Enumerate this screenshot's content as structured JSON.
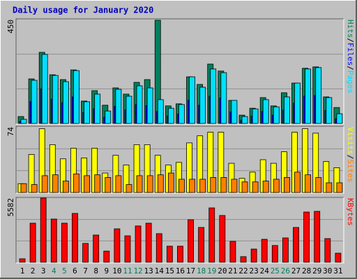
{
  "title": "Daily usage for January 2020",
  "chart_data": [
    {
      "type": "bar",
      "ylim": [
        0,
        450
      ],
      "yticks": [
        450
      ],
      "grid_values": [
        150,
        300
      ],
      "legend_separator": "/",
      "series": [
        {
          "name": "Hits",
          "color": "#00805c",
          "values": [
            30,
            193,
            308,
            211,
            190,
            232,
            97,
            142,
            79,
            154,
            127,
            178,
            190,
            447,
            76,
            85,
            202,
            169,
            257,
            227,
            100,
            36,
            66,
            112,
            76,
            133,
            175,
            239,
            245,
            115,
            69
          ]
        },
        {
          "name": "Files",
          "color": "#0000ff",
          "values": [
            9,
            95,
            150,
            105,
            90,
            115,
            47,
            64,
            27,
            74,
            59,
            82,
            77,
            52,
            33,
            41,
            101,
            79,
            118,
            110,
            50,
            15,
            32,
            52,
            36,
            58,
            88,
            118,
            121,
            56,
            21
          ]
        },
        {
          "name": "Pages",
          "color": "#00e0ff",
          "values": [
            18,
            187,
            299,
            208,
            181,
            229,
            94,
            127,
            54,
            148,
            118,
            163,
            154,
            103,
            66,
            82,
            202,
            157,
            236,
            220,
            100,
            30,
            63,
            103,
            72,
            115,
            175,
            236,
            242,
            112,
            42
          ]
        }
      ]
    },
    {
      "type": "bar",
      "ylim": [
        0,
        74
      ],
      "yticks": [
        74
      ],
      "grid_values": [
        24.67,
        49.33
      ],
      "legend_separator": "/",
      "series": [
        {
          "name": "Visits",
          "color": "#ffff00",
          "values": [
            10,
            43,
            72,
            54,
            38,
            50,
            39,
            50,
            22,
            42,
            31,
            54,
            54,
            42,
            31,
            34,
            56,
            64,
            68,
            68,
            33,
            16,
            23,
            37,
            33,
            46,
            68,
            72,
            67,
            35,
            28
          ]
        },
        {
          "name": "Sites",
          "color": "#ff8000",
          "values": [
            10,
            9,
            19,
            20,
            13,
            21,
            19,
            20,
            17,
            19,
            9,
            19,
            19,
            20,
            22,
            15,
            15,
            15,
            17,
            17,
            15,
            12,
            12,
            13,
            15,
            17,
            23,
            20,
            17,
            11,
            11
          ]
        }
      ]
    },
    {
      "type": "bar",
      "ylim": [
        0,
        5582
      ],
      "yticks": [
        5582
      ],
      "grid_values": [
        1860.67,
        3721.33
      ],
      "series": [
        {
          "name": "KBytes",
          "color": "#ff0000",
          "values": [
            304,
            3400,
            5582,
            3760,
            3400,
            4250,
            1640,
            2370,
            970,
            2910,
            2300,
            3160,
            3400,
            2490,
            1400,
            1400,
            3700,
            3030,
            4730,
            4070,
            1820,
            490,
            1150,
            2000,
            1460,
            2120,
            3030,
            4370,
            4430,
            2060,
            790
          ]
        }
      ],
      "categories": [
        "1",
        "2",
        "3",
        "4",
        "5",
        "6",
        "7",
        "8",
        "9",
        "10",
        "11",
        "12",
        "13",
        "14",
        "15",
        "16",
        "17",
        "18",
        "19",
        "20",
        "21",
        "22",
        "23",
        "24",
        "25",
        "26",
        "27",
        "28",
        "29",
        "30",
        "31"
      ],
      "category_colors": [
        "#000000",
        "#000000",
        "#000000",
        "#00805c",
        "#00805c",
        "#000000",
        "#000000",
        "#000000",
        "#000000",
        "#000000",
        "#00805c",
        "#00805c",
        "#000000",
        "#000000",
        "#000000",
        "#000000",
        "#000000",
        "#00805c",
        "#00805c",
        "#000000",
        "#000000",
        "#000000",
        "#000000",
        "#000000",
        "#00805c",
        "#00805c",
        "#000000",
        "#000000",
        "#000000",
        "#000000",
        "#000000"
      ]
    }
  ]
}
